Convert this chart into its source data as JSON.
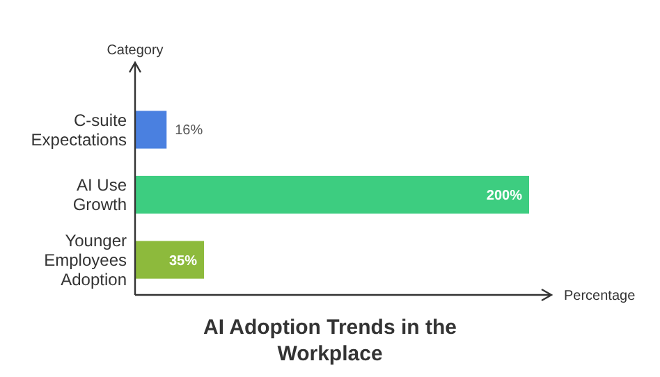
{
  "chart_data": {
    "type": "bar",
    "orientation": "horizontal",
    "title": "AI Adoption Trends in the Workplace",
    "xlabel": "Percentage",
    "ylabel": "Category",
    "categories": [
      "C-suite Expectations",
      "AI Use Growth",
      "Younger Employees Adoption"
    ],
    "values": [
      16,
      200,
      35
    ],
    "colors": [
      "#4a80e0",
      "#3dcd80",
      "#8dba3c"
    ],
    "value_labels": [
      "16%",
      "200%",
      "35%"
    ]
  }
}
